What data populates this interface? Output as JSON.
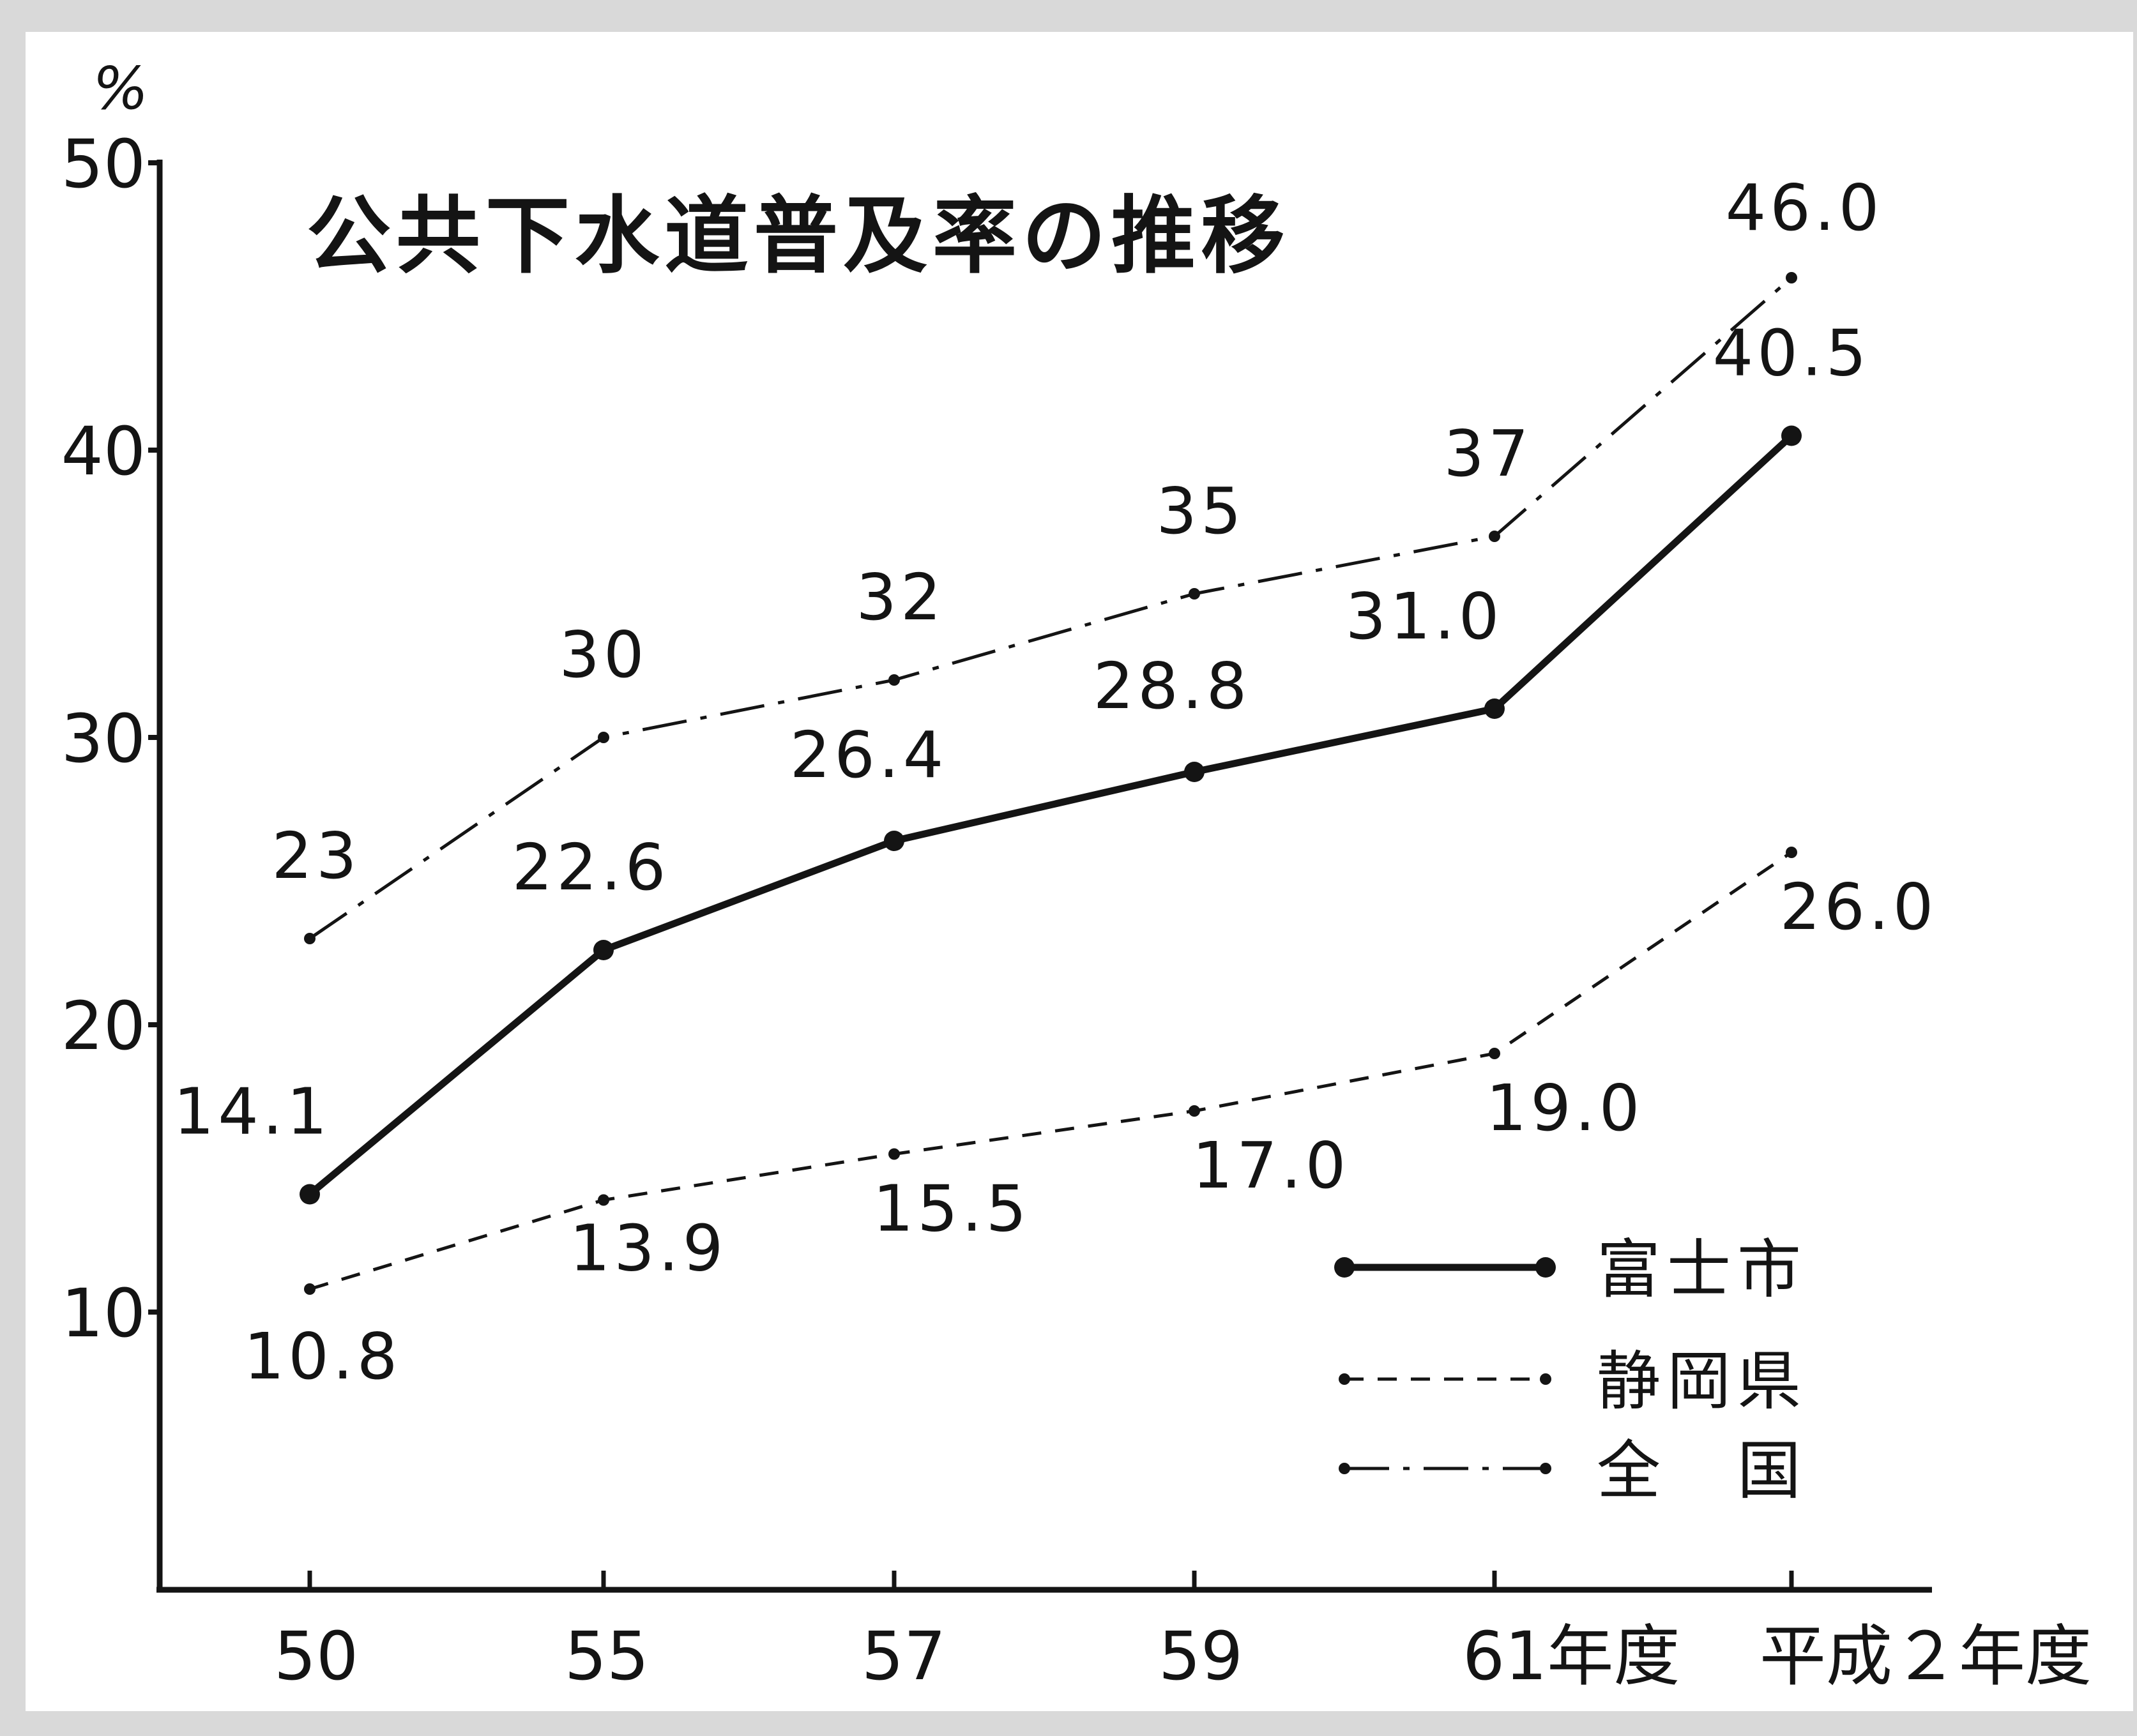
{
  "chart_data": {
    "type": "line",
    "title": "公共下水道普及率の推移",
    "y_unit_label": "%",
    "xlabel": "",
    "ylabel": "",
    "categories": [
      "50",
      "55",
      "57",
      "59",
      "61年度",
      "平成２年度"
    ],
    "y_ticks": [
      "10",
      "20",
      "30",
      "40",
      "50"
    ],
    "ylim": [
      0,
      50
    ],
    "grid": false,
    "legend_position": "bottom-right",
    "series": [
      {
        "name": "富士市",
        "style": "solid-bold",
        "values": [
          14.1,
          22.6,
          26.4,
          28.8,
          31.0,
          40.5
        ],
        "labels": [
          "14.1",
          "22.6",
          "26.4",
          "28.8",
          "31.0",
          "40.5"
        ]
      },
      {
        "name": "静岡県",
        "style": "dashed",
        "values": [
          10.8,
          13.9,
          15.5,
          17.0,
          19.0,
          26.0
        ],
        "labels": [
          "10.8",
          "13.9",
          "15.5",
          "17.0",
          "19.0",
          "26.0"
        ]
      },
      {
        "name": "全　国",
        "style": "dash-dot",
        "values": [
          23,
          30,
          32,
          35,
          37,
          46.0
        ],
        "labels": [
          "23",
          "30",
          "32",
          "35",
          "37",
          "46.0"
        ]
      }
    ],
    "colors": {
      "ink": "#141414",
      "paper": "#ffffff",
      "frame": "#d9d9d9"
    }
  }
}
